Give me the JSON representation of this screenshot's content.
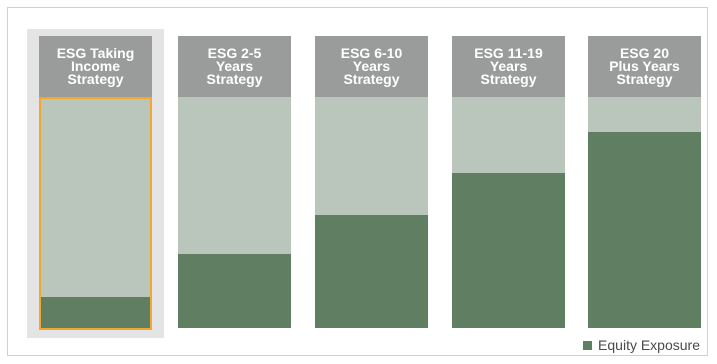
{
  "chart_data": {
    "type": "bar",
    "categories": [
      "ESG Taking\nIncome\nStrategy",
      "ESG 2-5\nYears\nStrategy",
      "ESG 6-10\nYears\nStrategy",
      "ESG 11-19\nYears\nStrategy",
      "ESG 20\nPlus Years\nStrategy"
    ],
    "series": [
      {
        "name": "Equity Exposure",
        "values": [
          14,
          32,
          49,
          67,
          85
        ]
      }
    ],
    "ylim": [
      0,
      100
    ],
    "highlighted_category": "ESG Taking\nIncome\nStrategy",
    "legend": {
      "position": "bottom-right",
      "label": "Equity Exposure"
    },
    "colors": {
      "equity": "#5f7e62",
      "remainder": "#bac5bb",
      "header": "#9a9c9b",
      "highlight_outline": "#f0a830",
      "highlight_panel": "#e4e4e4"
    }
  }
}
